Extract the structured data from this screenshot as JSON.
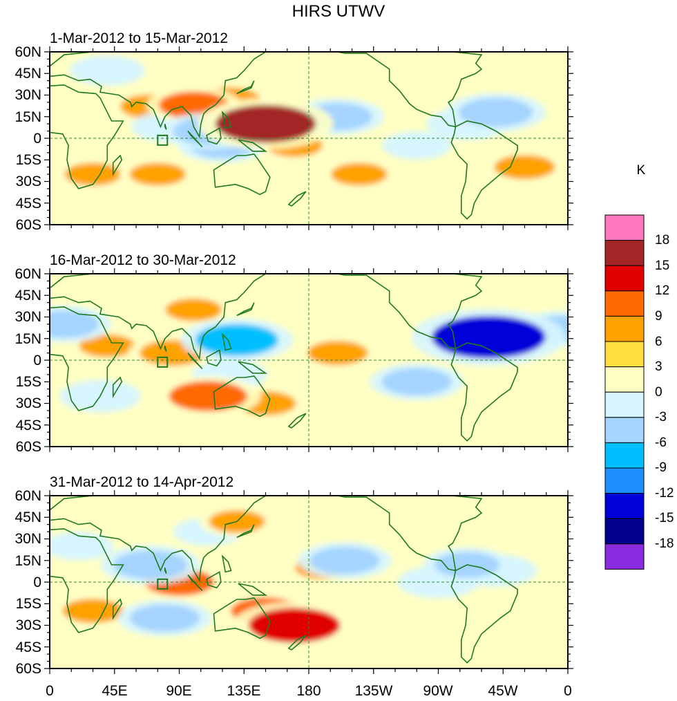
{
  "chart_data": {
    "type": "heatmap",
    "title": "HIRS UTWV",
    "colorbar": {
      "unit": "K",
      "levels": [
        "18",
        "15",
        "12",
        "9",
        "6",
        "3",
        "0",
        "-3",
        "-6",
        "-9",
        "-12",
        "-15",
        "-18"
      ],
      "colors": [
        "#ff78be",
        "#a32626",
        "#e00000",
        "#ff6a00",
        "#ffa200",
        "#ffdf40",
        "#ffffc4",
        "#d6f5ff",
        "#a5d4ff",
        "#00bfff",
        "#1e8fff",
        "#0000d8",
        "#00008c",
        "#8a2be2"
      ]
    },
    "x_ticks": [
      "0",
      "45E",
      "90E",
      "135E",
      "180",
      "135W",
      "90W",
      "45W",
      "0"
    ],
    "y_ticks": [
      "60N",
      "45N",
      "30N",
      "15N",
      "0",
      "15S",
      "30S",
      "45S",
      "60S"
    ],
    "lon_range": [
      0,
      360
    ],
    "lat_range": [
      -60,
      60
    ],
    "panels": [
      {
        "title": "1-Mar-2012 to 15-Mar-2012",
        "anomalies": [
          {
            "lon": 150,
            "lat": 10,
            "value": 14
          },
          {
            "lon": 145,
            "lat": 12,
            "value": 8
          },
          {
            "lon": 100,
            "lat": 23,
            "value": 7
          },
          {
            "lon": 70,
            "lat": 22,
            "value": 5
          },
          {
            "lon": 125,
            "lat": 27,
            "value": 5
          },
          {
            "lon": 170,
            "lat": -5,
            "value": 4
          },
          {
            "lon": 30,
            "lat": -25,
            "value": 4
          },
          {
            "lon": 75,
            "lat": -25,
            "value": 4
          },
          {
            "lon": 215,
            "lat": -25,
            "value": 4
          },
          {
            "lon": 330,
            "lat": -20,
            "value": 5
          },
          {
            "lon": 200,
            "lat": 15,
            "value": -7
          },
          {
            "lon": 110,
            "lat": 5,
            "value": -7
          },
          {
            "lon": 120,
            "lat": -5,
            "value": -6
          },
          {
            "lon": 85,
            "lat": 8,
            "value": -5
          },
          {
            "lon": 310,
            "lat": 18,
            "value": -8
          },
          {
            "lon": 290,
            "lat": 10,
            "value": -5
          },
          {
            "lon": 40,
            "lat": 47,
            "value": -4
          },
          {
            "lon": 255,
            "lat": -5,
            "value": -3
          }
        ]
      },
      {
        "title": "16-Mar-2012 to 30-Mar-2012",
        "anomalies": [
          {
            "lon": 305,
            "lat": 16,
            "value": -17
          },
          {
            "lon": 295,
            "lat": 15,
            "value": -7
          },
          {
            "lon": 130,
            "lat": 14,
            "value": -10
          },
          {
            "lon": 10,
            "lat": 25,
            "value": -7
          },
          {
            "lon": 355,
            "lat": 22,
            "value": -6
          },
          {
            "lon": 255,
            "lat": -15,
            "value": -7
          },
          {
            "lon": 125,
            "lat": -10,
            "value": -4
          },
          {
            "lon": 35,
            "lat": -25,
            "value": -5
          },
          {
            "lon": 110,
            "lat": -25,
            "value": 9
          },
          {
            "lon": 85,
            "lat": 5,
            "value": 6
          },
          {
            "lon": 200,
            "lat": 5,
            "value": 5
          },
          {
            "lon": 100,
            "lat": 35,
            "value": 4
          },
          {
            "lon": 40,
            "lat": 10,
            "value": 4
          },
          {
            "lon": 150,
            "lat": -30,
            "value": 5
          },
          {
            "lon": 230,
            "lat": 20,
            "value": 3
          },
          {
            "lon": 340,
            "lat": 0,
            "value": 3
          }
        ]
      },
      {
        "title": "31-Mar-2012 to 14-Apr-2012",
        "anomalies": [
          {
            "lon": 170,
            "lat": -30,
            "value": 12
          },
          {
            "lon": 150,
            "lat": -20,
            "value": 7
          },
          {
            "lon": 90,
            "lat": 0,
            "value": 7
          },
          {
            "lon": 30,
            "lat": -20,
            "value": 5
          },
          {
            "lon": 130,
            "lat": 42,
            "value": 4
          },
          {
            "lon": 190,
            "lat": 10,
            "value": 4
          },
          {
            "lon": 70,
            "lat": 12,
            "value": -8
          },
          {
            "lon": 205,
            "lat": 15,
            "value": -7
          },
          {
            "lon": 290,
            "lat": 12,
            "value": -6
          },
          {
            "lon": 310,
            "lat": 8,
            "value": -5
          },
          {
            "lon": 270,
            "lat": 0,
            "value": -5
          },
          {
            "lon": 80,
            "lat": -25,
            "value": -7
          },
          {
            "lon": 110,
            "lat": 35,
            "value": -3
          },
          {
            "lon": 20,
            "lat": 25,
            "value": -3
          }
        ]
      }
    ]
  }
}
